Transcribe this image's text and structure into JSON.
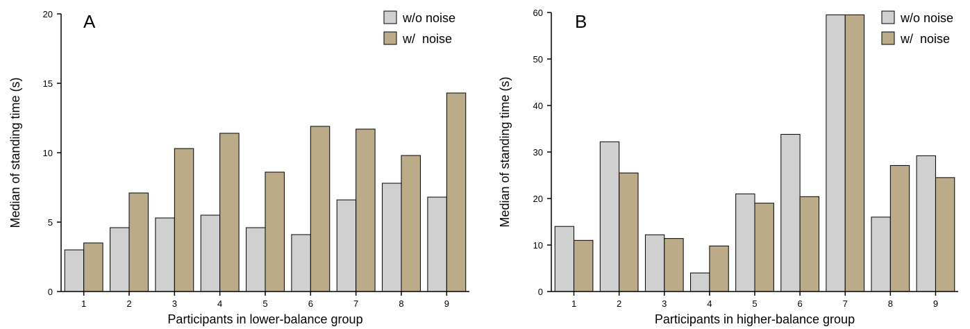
{
  "colors": {
    "without_noise": "#d0d0d0",
    "with_noise": "#bbab89"
  },
  "chart_data": [
    {
      "type": "bar",
      "panel_label": "A",
      "categories": [
        "1",
        "2",
        "3",
        "4",
        "5",
        "6",
        "7",
        "8",
        "9"
      ],
      "series": [
        {
          "name": "w/o noise",
          "values": [
            3.0,
            4.6,
            5.3,
            5.5,
            4.6,
            4.1,
            6.6,
            7.8,
            6.8
          ]
        },
        {
          "name": "w/  noise",
          "values": [
            3.5,
            7.1,
            10.3,
            11.4,
            8.6,
            11.9,
            11.7,
            9.8,
            14.3
          ]
        }
      ],
      "xlabel": "Participants in lower-balance group",
      "ylabel": "Median of standing time (s)",
      "ylim": [
        0,
        20
      ],
      "yticks": [
        "0",
        "5",
        "10",
        "15",
        "20"
      ],
      "legend_position": "top-right",
      "grid": false
    },
    {
      "type": "bar",
      "panel_label": "B",
      "categories": [
        "1",
        "2",
        "3",
        "4",
        "5",
        "6",
        "7",
        "8",
        "9"
      ],
      "series": [
        {
          "name": "w/o noise",
          "values": [
            14.0,
            32.2,
            12.2,
            4.0,
            21.0,
            33.8,
            59.5,
            16.0,
            29.2
          ]
        },
        {
          "name": "w/  noise",
          "values": [
            11.0,
            25.5,
            11.4,
            9.8,
            19.0,
            20.4,
            59.5,
            27.1,
            24.5
          ]
        }
      ],
      "xlabel": "Participants in higher-balance group",
      "ylabel": "Median of  standing time (s)",
      "ylim": [
        0,
        60
      ],
      "yticks": [
        "0",
        "10",
        "20",
        "30",
        "40",
        "50",
        "60"
      ],
      "legend_position": "top-right",
      "grid": false
    }
  ]
}
